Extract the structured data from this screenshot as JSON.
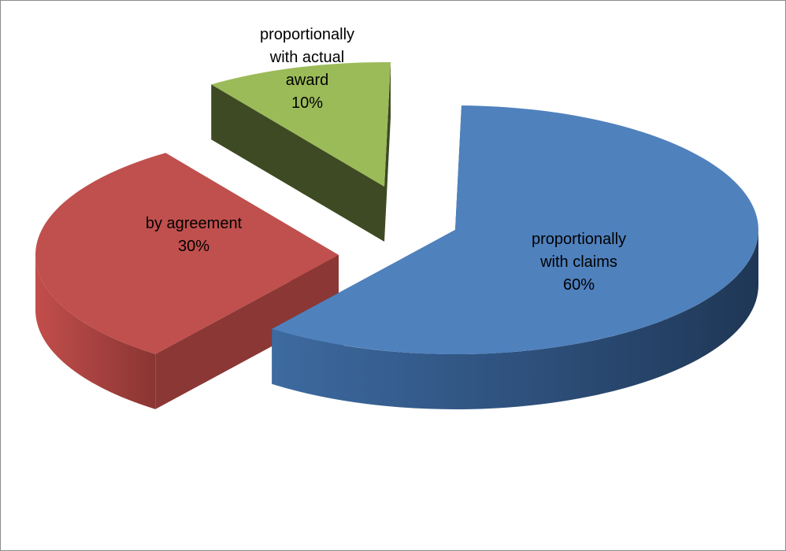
{
  "chart_data": {
    "type": "pie",
    "variant": "3d-exploded",
    "title": "",
    "slices": [
      {
        "lines": [
          "proportionally",
          "with claims"
        ],
        "percent_label": "60%",
        "value": 60,
        "color": "#4f81bd"
      },
      {
        "lines": [
          "by agreement"
        ],
        "percent_label": "30%",
        "value": 30,
        "color": "#c0504d"
      },
      {
        "lines": [
          "proportionally",
          "with actual",
          "award"
        ],
        "percent_label": "10%",
        "value": 10,
        "color": "#9bbb59"
      }
    ],
    "legend": "none",
    "labels_on_slices": true
  }
}
